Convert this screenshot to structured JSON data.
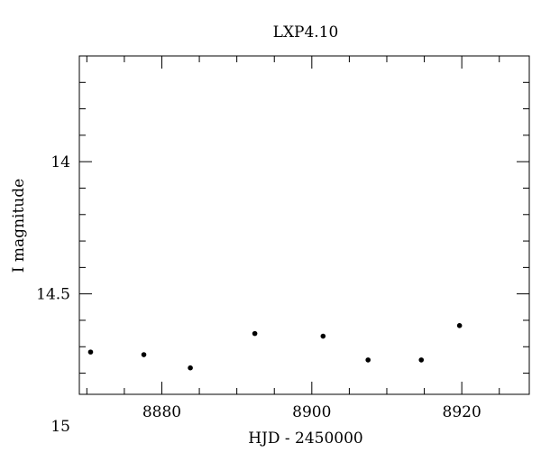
{
  "chart_data": {
    "type": "scatter",
    "title": "LXP4.10",
    "xlabel": "HJD - 2450000",
    "ylabel": "I magnitude",
    "xlim": [
      8869,
      8929
    ],
    "ylim": [
      14.88,
      13.6
    ],
    "y_inverted": true,
    "grid": false,
    "x_ticks": {
      "major": [
        8880,
        8900,
        8920
      ],
      "minor_step": 5
    },
    "y_ticks": {
      "major": [
        14,
        14.5,
        15
      ],
      "minor_step": 0.1
    },
    "x_tick_labels": [
      "8880",
      "8900",
      "8920"
    ],
    "y_tick_labels": [
      "14",
      "14.5",
      "15"
    ],
    "series": [
      {
        "x": [
          8870.5,
          8877.6,
          8883.8,
          8892.4,
          8901.5,
          8907.5,
          8914.6,
          8919.7
        ],
        "y": [
          14.72,
          14.73,
          14.78,
          14.65,
          14.66,
          14.75,
          14.75,
          14.62
        ]
      }
    ]
  }
}
